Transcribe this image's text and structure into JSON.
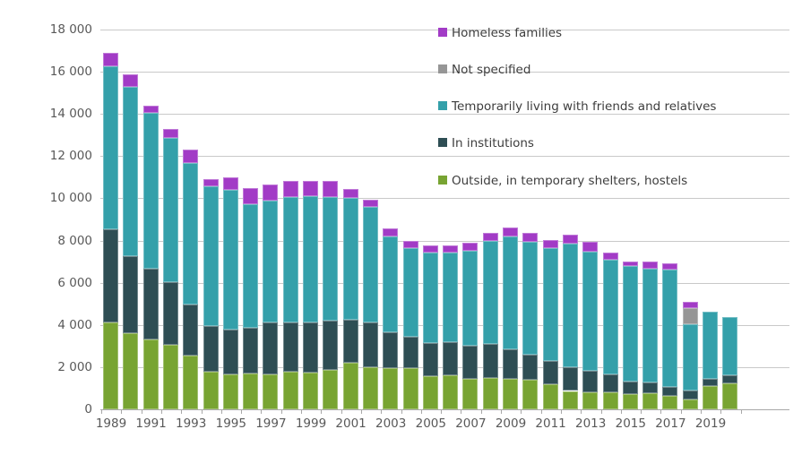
{
  "chart_data": {
    "type": "bar",
    "stacked": true,
    "title": "",
    "xlabel": "",
    "ylabel": "",
    "ylim": [
      0,
      18000
    ],
    "grid": true,
    "legend_position": "top-right",
    "x": [
      1989,
      1990,
      1991,
      1992,
      1993,
      1994,
      1995,
      1996,
      1997,
      1998,
      1999,
      2000,
      2001,
      2002,
      2003,
      2004,
      2005,
      2006,
      2007,
      2008,
      2009,
      2010,
      2011,
      2012,
      2013,
      2014,
      2015,
      2016,
      2017,
      2018,
      2019,
      2020
    ],
    "x_tick_labels": [
      "1989",
      "1991",
      "1993",
      "1995",
      "1997",
      "1999",
      "2001",
      "2003",
      "2005",
      "2007",
      "2009",
      "2011",
      "2013",
      "2015",
      "2017",
      "2019"
    ],
    "y_ticks": [
      0,
      2000,
      4000,
      6000,
      8000,
      10000,
      12000,
      14000,
      16000,
      18000
    ],
    "y_tick_labels": [
      "0",
      "2 000",
      "4 000",
      "6 000",
      "8 000",
      "10 000",
      "12 000",
      "14 000",
      "16 000",
      "18 000"
    ],
    "series": [
      {
        "name": "Outside, in temporary shelters, hostels",
        "color": "#78a432",
        "values": [
          4100,
          3600,
          3330,
          3050,
          2530,
          1770,
          1675,
          1700,
          1675,
          1800,
          1730,
          1880,
          2190,
          2000,
          1950,
          1970,
          1580,
          1620,
          1435,
          1505,
          1435,
          1395,
          1170,
          870,
          800,
          795,
          720,
          750,
          650,
          480,
          1115,
          1215
        ]
      },
      {
        "name": "In institutions",
        "color": "#2e4e54",
        "values": [
          4440,
          3670,
          3330,
          2970,
          2420,
          2165,
          2120,
          2150,
          2455,
          2300,
          2400,
          2315,
          2050,
          2100,
          1720,
          1460,
          1555,
          1555,
          1600,
          1575,
          1430,
          1215,
          1130,
          1105,
          1035,
          875,
          595,
          535,
          425,
          410,
          340,
          385
        ]
      },
      {
        "name": "Temporarily living with friends and relatives",
        "color": "#34a0aa",
        "values": [
          7700,
          8000,
          7390,
          6840,
          6740,
          6615,
          6605,
          5870,
          5760,
          5970,
          5970,
          5855,
          5760,
          5475,
          4540,
          4195,
          4280,
          4255,
          4495,
          4915,
          5330,
          5340,
          5325,
          5865,
          5650,
          5405,
          5465,
          5395,
          5530,
          3155,
          3180,
          2755
        ]
      },
      {
        "name": "Not specified",
        "color": "#969696",
        "values": [
          0,
          0,
          0,
          0,
          0,
          0,
          0,
          0,
          0,
          0,
          0,
          0,
          0,
          0,
          0,
          0,
          0,
          0,
          0,
          0,
          0,
          0,
          0,
          0,
          0,
          0,
          0,
          0,
          0,
          770,
          0,
          0
        ]
      },
      {
        "name": "Homeless families",
        "color": "#a23bc6",
        "values": [
          650,
          600,
          330,
          430,
          610,
          360,
          600,
          775,
          745,
          750,
          720,
          770,
          425,
          380,
          380,
          370,
          355,
          340,
          380,
          380,
          420,
          425,
          400,
          440,
          440,
          355,
          225,
          325,
          315,
          270,
          0,
          0
        ]
      }
    ],
    "legend_display_order": [
      4,
      3,
      2,
      1,
      0
    ]
  }
}
